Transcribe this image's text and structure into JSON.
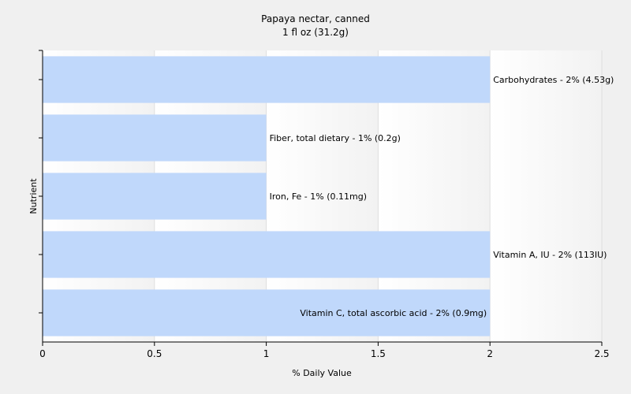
{
  "chart_data": {
    "type": "bar",
    "orientation": "horizontal",
    "title": "Papaya nectar, canned",
    "subtitle": "1 fl oz (31.2g)",
    "xlabel": "% Daily Value",
    "ylabel": "Nutrient",
    "xlim": [
      0,
      2.5
    ],
    "xticks": [
      "0",
      "0.5",
      "1",
      "1.5",
      "2",
      "2.5"
    ],
    "xtick_values": [
      0,
      0.5,
      1,
      1.5,
      2,
      2.5
    ],
    "grid": true,
    "legend": "none",
    "categories": [
      "Carbohydrates",
      "Fiber, total dietary",
      "Iron, Fe",
      "Vitamin A, IU",
      "Vitamin C, total ascorbic acid"
    ],
    "values": [
      2,
      1,
      1,
      2,
      2
    ],
    "data_labels": [
      "Carbohydrates - 2% (4.53g)",
      "Fiber, total dietary - 1% (0.2g)",
      "Iron, Fe - 1% (0.11mg)",
      "Vitamin A, IU - 2% (113IU)",
      "Vitamin C, total ascorbic acid - 2% (0.9mg)"
    ],
    "colors": {
      "bar": "#c0d8fb",
      "plot_background": "#ffffff",
      "band_background": "#f4f4f4",
      "gridline": "#dedede",
      "axis": "#000000",
      "page_background": "#f0f0f0"
    }
  }
}
